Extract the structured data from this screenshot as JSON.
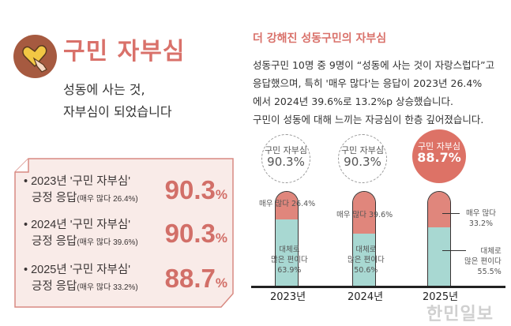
{
  "header": {
    "title": "구민 자부심",
    "icon": "heart-hand-icon",
    "subtitle_lines": [
      "성동에 사는 것,",
      "자부심이 되었습니다"
    ]
  },
  "summary": [
    {
      "line1": "• 2023년 '구민 자부심'",
      "line2": "긍정 응답",
      "detail": "(매우 많다 26.4%)",
      "value": "90.3",
      "unit": "%"
    },
    {
      "line1": "• 2024년 '구민 자부심'",
      "line2": "긍정 응답",
      "detail": "(매우 많다 39.6%)",
      "value": "90.3",
      "unit": "%"
    },
    {
      "line1": "• 2025년 '구민 자부심'",
      "line2": "긍정 응답",
      "detail": "(매우 많다 33.2%)",
      "value": "88.7",
      "unit": "%"
    }
  ],
  "right": {
    "title": "더 강해진 성동구민의 자부심",
    "paragraph": [
      "성동구민 10명 중 9명이 “성동에 사는 것이 자랑스럽다”고",
      "응답했으며, 특히 '매우 많다'는 응답이 2023년 26.4%",
      "에서 2024년 39.6%로 13.2%p 상승했습니다.",
      "구민이 성동에 대해 느끼는 자긍심이 한층 깊어졌습니다."
    ]
  },
  "chart_data": {
    "type": "bar",
    "stacked": true,
    "categories": [
      "2023년",
      "2024년",
      "2025년"
    ],
    "series": [
      {
        "name": "매우 많다",
        "values": [
          26.4,
          39.6,
          33.2
        ],
        "color": "#e0867c"
      },
      {
        "name": "대체로 많은 편이다",
        "values": [
          63.9,
          50.6,
          55.5
        ],
        "color": "#a8d8d2"
      }
    ],
    "totals_label": "구민 자부심",
    "totals": [
      "90.3%",
      "90.3%",
      "88.7%"
    ],
    "labels": {
      "very": [
        "매우 많다 26.4%",
        "매우 많다 39.6%",
        "매우 많다",
        "33.2%"
      ],
      "mostly": [
        "대체로",
        "많은 편이다",
        "63.9%",
        "50.6%",
        "55.5%"
      ]
    }
  },
  "watermark": "한민일보"
}
